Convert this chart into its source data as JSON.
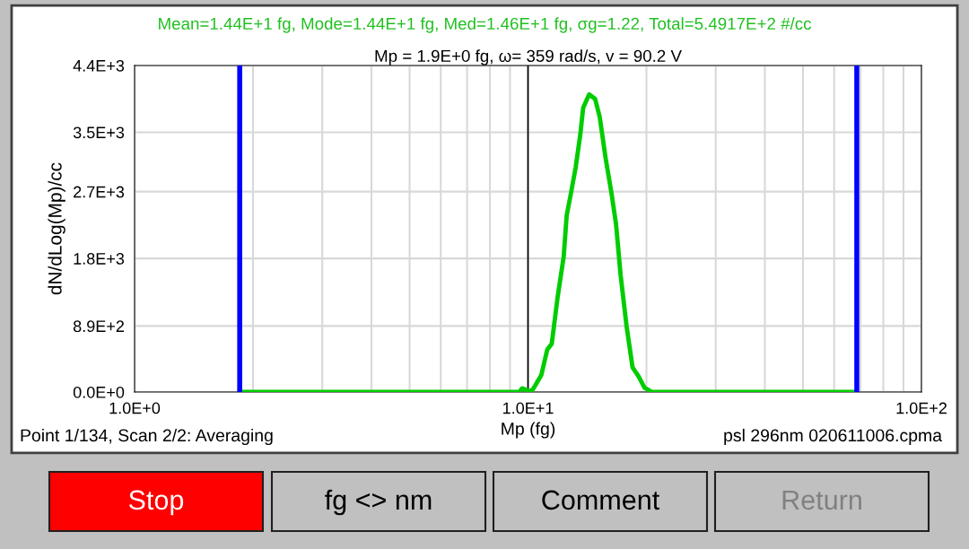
{
  "chart_data": {
    "type": "line",
    "title": "Mean=1.44E+1 fg, Mode=1.44E+1 fg, Med=1.46E+1 fg, σg=1.22, Total=5.4917E+2 #/cc",
    "subtitle": "Mp = 1.9E+0 fg, ω= 359 rad/s, v = 90.2 V",
    "xlabel": "Mp (fg)",
    "ylabel": "dN/dLog(Mp)/cc",
    "log": "x",
    "grid": true,
    "line_style": "solid",
    "marker": "none",
    "xlim": [
      1,
      100
    ],
    "ylim": [
      0,
      4400
    ],
    "xticks": [
      {
        "value": 1,
        "label": "1.0E+0"
      },
      {
        "value": 2,
        "label": null
      },
      {
        "value": 3,
        "label": null
      },
      {
        "value": 4,
        "label": null
      },
      {
        "value": 5,
        "label": null
      },
      {
        "value": 6,
        "label": null
      },
      {
        "value": 7,
        "label": null
      },
      {
        "value": 8,
        "label": null
      },
      {
        "value": 9,
        "label": null
      },
      {
        "value": 10,
        "label": "1.0E+1"
      },
      {
        "value": 20,
        "label": null
      },
      {
        "value": 30,
        "label": null
      },
      {
        "value": 40,
        "label": null
      },
      {
        "value": 50,
        "label": null
      },
      {
        "value": 60,
        "label": null
      },
      {
        "value": 70,
        "label": null
      },
      {
        "value": 80,
        "label": null
      },
      {
        "value": 90,
        "label": null
      },
      {
        "value": 100,
        "label": "1.0E+2"
      }
    ],
    "yticks": [
      {
        "value": 0,
        "label": "0.0E+0"
      },
      {
        "value": 890,
        "label": "8.9E+2"
      },
      {
        "value": 1800,
        "label": "1.8E+3"
      },
      {
        "value": 2700,
        "label": "2.7E+3"
      },
      {
        "value": 3500,
        "label": "3.5E+3"
      },
      {
        "value": 4400,
        "label": "4.4E+3"
      }
    ],
    "series": [
      {
        "color": "#00cc00",
        "x": [
          1.85,
          9.5,
          9.66,
          9.97,
          10.24,
          10.44,
          10.81,
          11.19,
          11.49,
          11.9,
          12.32,
          12.54,
          12.88,
          13.22,
          13.58,
          13.81,
          14.3,
          14.81,
          15.21,
          15.75,
          16.32,
          16.74,
          17.19,
          17.8,
          18.44,
          19.1,
          19.77,
          20.66,
          66.7
        ],
        "values": [
          0,
          0,
          50,
          20,
          20,
          90,
          230,
          570,
          650,
          1290,
          1820,
          2380,
          2700,
          3030,
          3470,
          3830,
          4010,
          3950,
          3710,
          3150,
          2660,
          2260,
          1580,
          890,
          330,
          210,
          60,
          0,
          0
        ]
      }
    ],
    "ref_lines": [
      {
        "axis": "x",
        "value": 1.85,
        "color": "#0000ff"
      },
      {
        "axis": "x",
        "value": 10,
        "color": "#000000"
      },
      {
        "axis": "x",
        "value": 68.5,
        "color": "#0000ff"
      }
    ],
    "annotations": [
      "Point 1/134, Scan 2/2: Averaging",
      "psl 296nm 020611006.cpma",
      "Stop",
      "fg <> nm",
      "Comment",
      "Return"
    ]
  }
}
